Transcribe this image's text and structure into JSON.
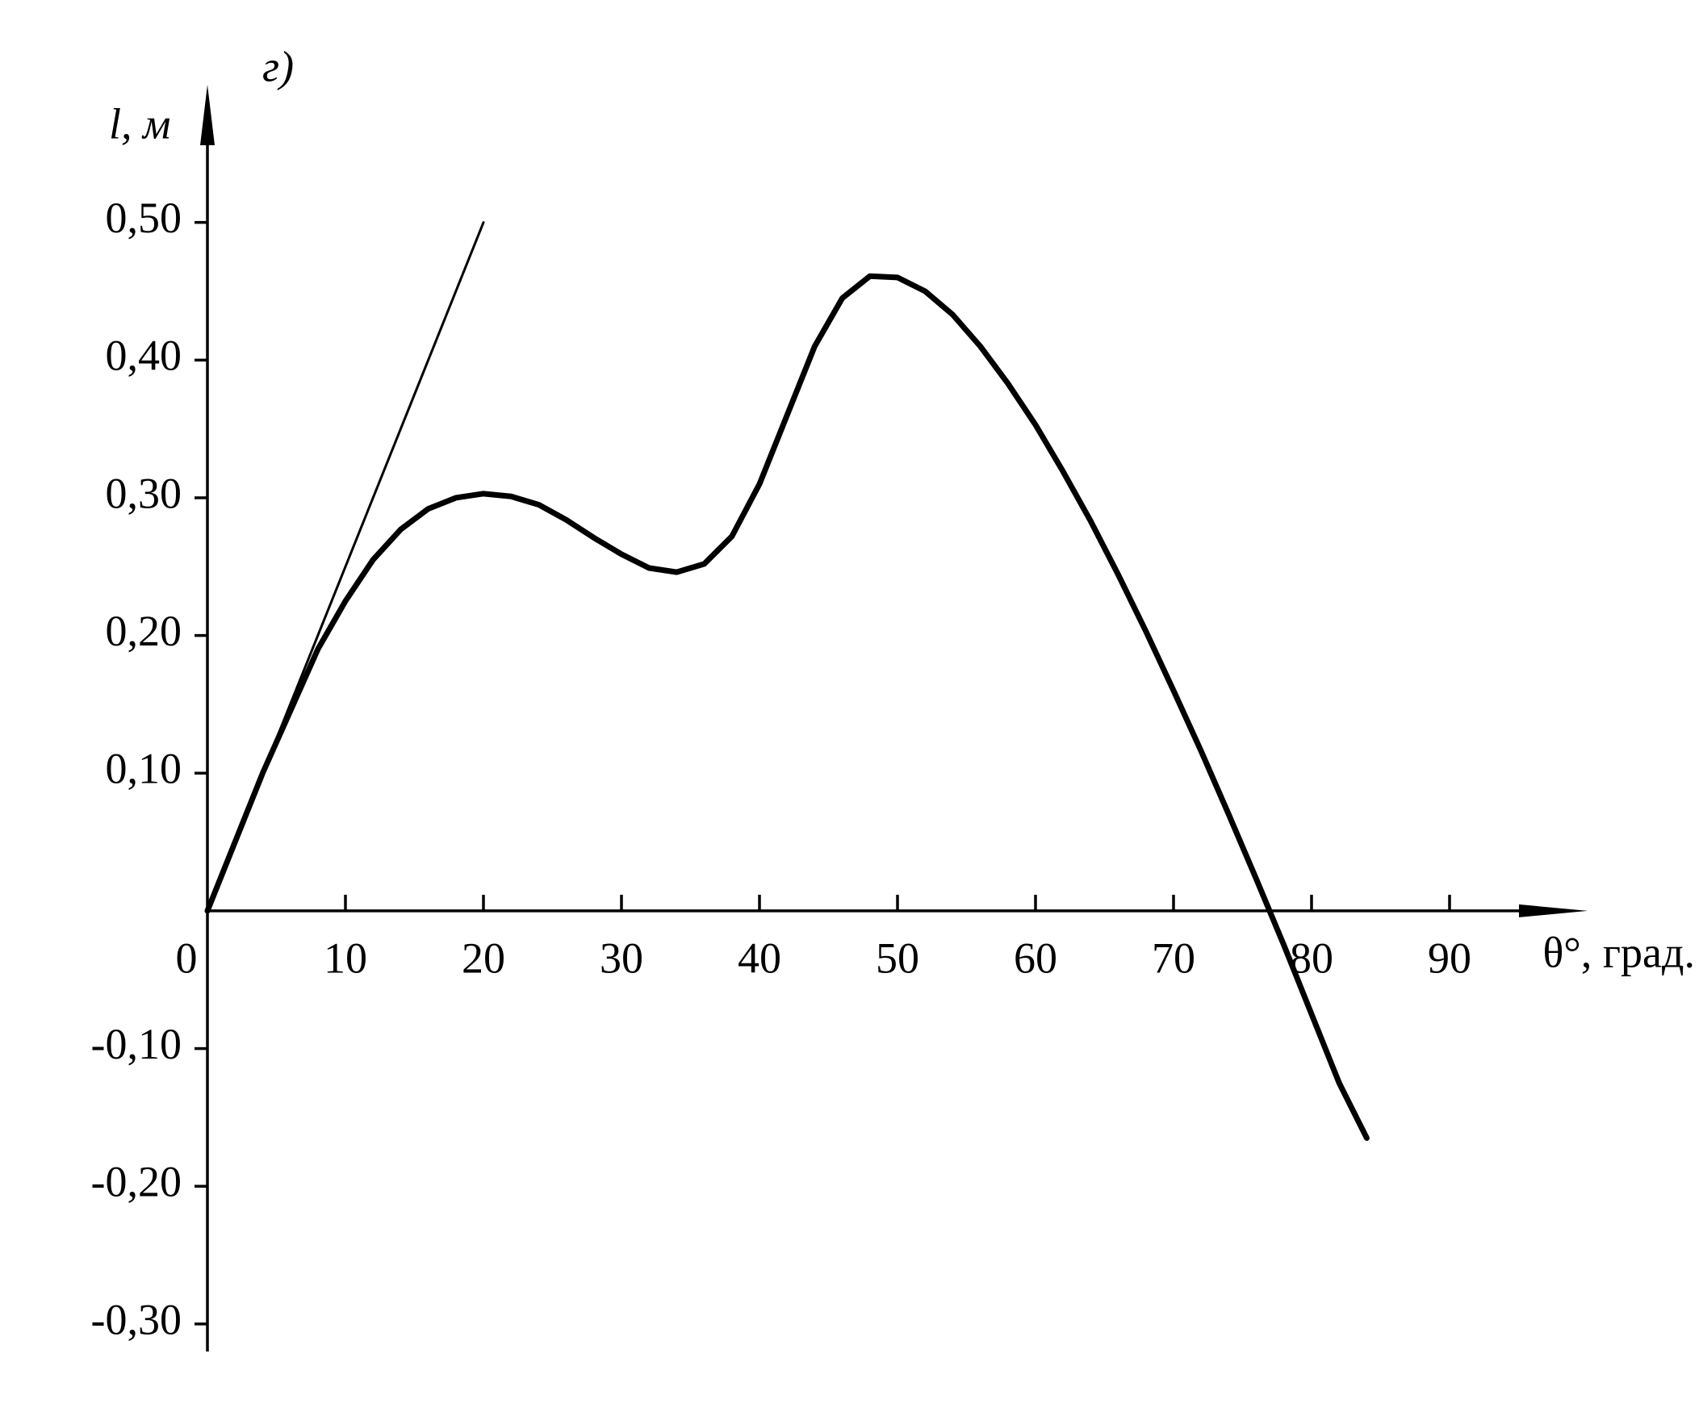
{
  "chart_data": {
    "type": "line",
    "title": "г)",
    "y_label": "l, м",
    "x_label": "θ°, град.",
    "xlim": [
      0,
      100
    ],
    "ylim": [
      -0.32,
      0.6
    ],
    "xticks": [
      0,
      10,
      20,
      30,
      40,
      50,
      60,
      70,
      80,
      90
    ],
    "yticks": [
      {
        "value": -0.3,
        "label": "-0,30"
      },
      {
        "value": -0.2,
        "label": "-0,20"
      },
      {
        "value": -0.1,
        "label": "-0,10"
      },
      {
        "value": 0.1,
        "label": "0,10"
      },
      {
        "value": 0.2,
        "label": "0,20"
      },
      {
        "value": 0.3,
        "label": "0,30"
      },
      {
        "value": 0.4,
        "label": "0,40"
      },
      {
        "value": 0.5,
        "label": "0,50"
      }
    ],
    "series": [
      {
        "color": "#000000",
        "x": [
          0,
          2,
          4,
          6,
          8,
          10,
          12,
          14,
          16,
          18,
          20,
          22,
          24,
          26,
          28,
          30,
          32,
          34,
          36,
          38,
          40,
          42,
          44,
          46,
          48,
          50,
          52,
          54,
          56,
          58,
          60,
          62,
          64,
          66,
          68,
          70,
          72,
          74,
          76,
          78,
          80,
          82,
          84
        ],
        "values": [
          0,
          0.05,
          0.1,
          0.145,
          0.19,
          0.225,
          0.255,
          0.277,
          0.292,
          0.3,
          0.303,
          0.301,
          0.295,
          0.284,
          0.271,
          0.259,
          0.249,
          0.246,
          0.252,
          0.272,
          0.31,
          0.36,
          0.41,
          0.445,
          0.461,
          0.46,
          0.45,
          0.433,
          0.41,
          0.383,
          0.353,
          0.319,
          0.283,
          0.244,
          0.203,
          0.16,
          0.116,
          0.07,
          0.023,
          -0.025,
          -0.075,
          -0.125,
          -0.165
        ]
      },
      {
        "color": "#000000",
        "x": [
          0,
          20
        ],
        "values": [
          0,
          0.5
        ]
      }
    ]
  }
}
